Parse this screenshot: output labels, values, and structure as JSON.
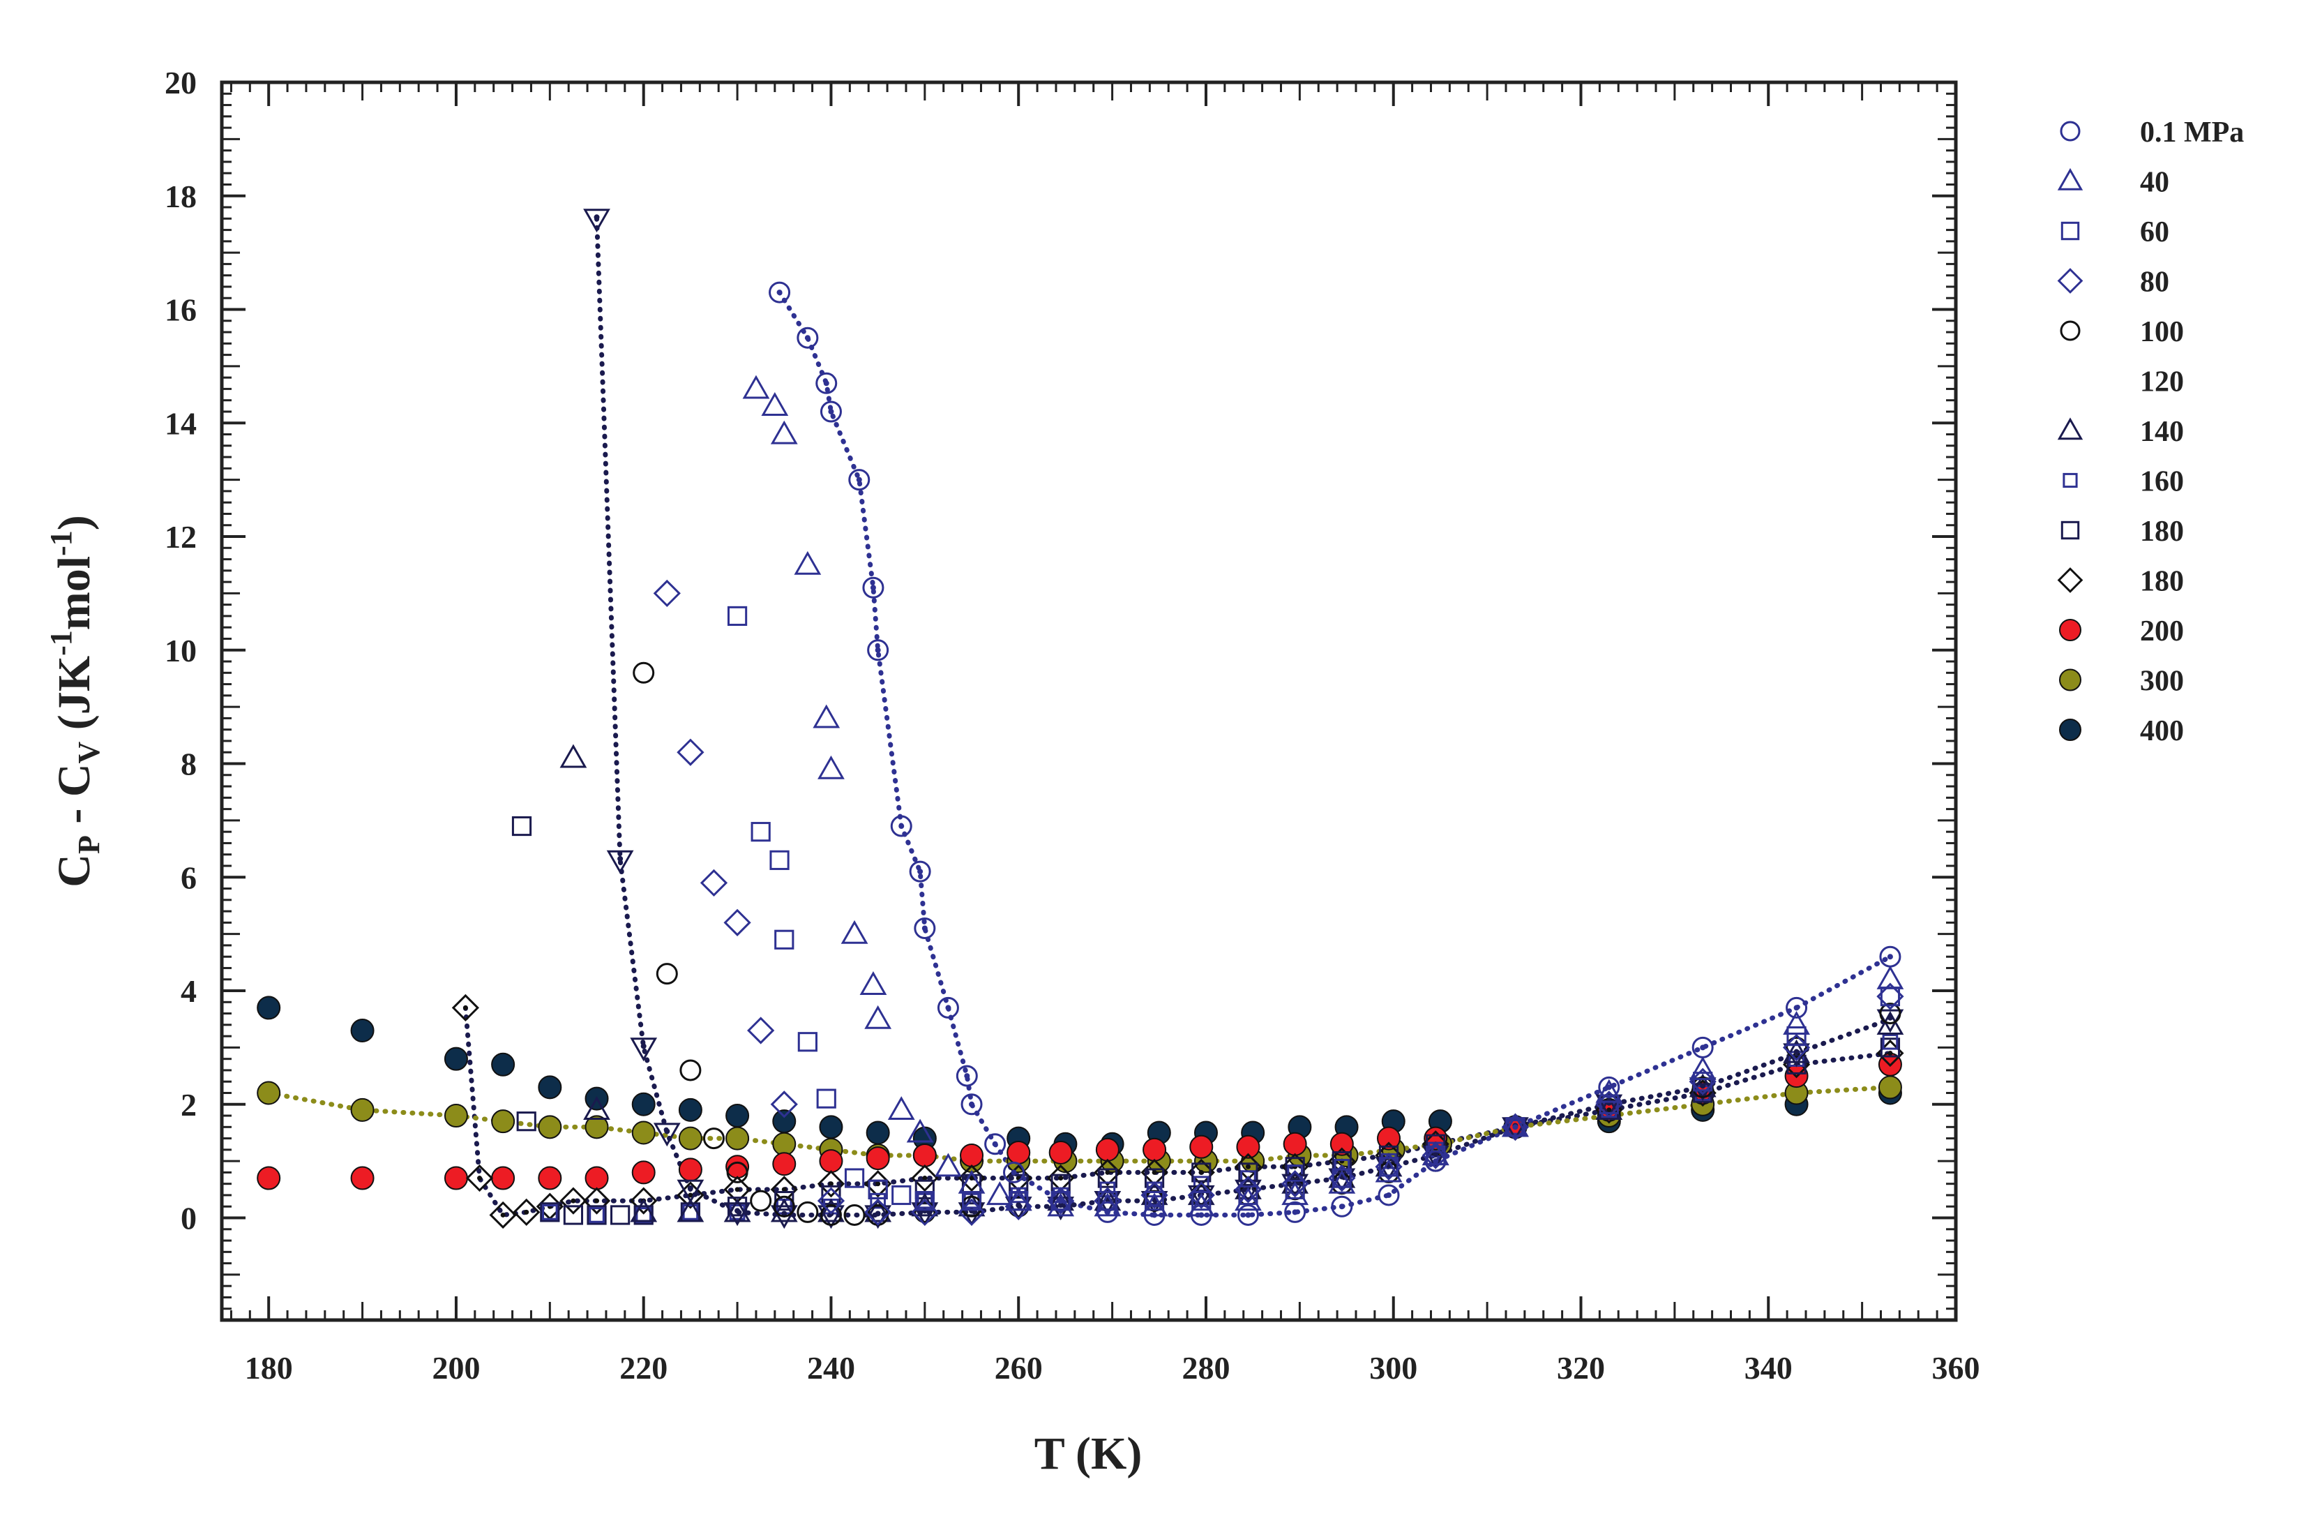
{
  "chart_data": {
    "type": "scatter",
    "title": "",
    "xlabel": "T (K)",
    "ylabel": {
      "main": "C",
      "sub1": "P",
      "mid": " - C",
      "sub2": "V",
      "units_open": " (JK",
      "sup1": "-1",
      "units_mol": "mol",
      "sup2": "-1",
      "units_close": ")"
    },
    "xlim": [
      175,
      360
    ],
    "ylim": [
      -1.8,
      20
    ],
    "xticks": [
      180,
      200,
      220,
      240,
      260,
      280,
      300,
      320,
      340,
      360
    ],
    "yticks": [
      0,
      2,
      4,
      6,
      8,
      10,
      12,
      14,
      16,
      18,
      20
    ],
    "grid": false,
    "legend_position": "right",
    "colors": {
      "blue": "#2e3192",
      "navy": "#1a1a4e",
      "red": "#ed1c24",
      "olive": "#8c8c1a",
      "darkteal": "#0d2d4a",
      "black": "#111111"
    },
    "series": [
      {
        "name": "0.1 MPa",
        "marker": "circle-dot",
        "color": "#2e3192",
        "x": [
          234.5,
          237.5,
          239.5,
          240,
          243,
          244.5,
          245,
          247.5,
          249.5,
          250,
          252.5,
          254.5,
          255,
          257.5,
          259.5,
          264.5,
          269.5,
          274.5,
          279.5,
          284.5,
          289.5,
          294.5,
          299.5,
          304.5,
          313,
          323,
          333,
          343,
          353
        ],
        "y": [
          16.3,
          15.5,
          14.7,
          14.2,
          13.0,
          11.1,
          10.0,
          6.9,
          6.1,
          5.1,
          3.7,
          2.5,
          2.0,
          1.3,
          0.8,
          0.3,
          0.1,
          0.05,
          0.05,
          0.05,
          0.1,
          0.2,
          0.4,
          1.0,
          1.6,
          2.3,
          3.0,
          3.7,
          4.6
        ],
        "line": true,
        "line_color": "#2e3192"
      },
      {
        "name": "40",
        "marker": "triangle-up",
        "color": "#2e3192",
        "x": [
          232,
          234,
          235,
          237.5,
          239.5,
          240,
          242.5,
          244.5,
          245,
          247.5,
          249.5,
          252.5,
          255,
          258,
          260,
          264.5,
          269.5,
          274.5,
          279.5,
          284.5,
          289.5,
          294.5,
          299.5,
          304.5,
          313,
          323,
          333,
          343,
          353
        ],
        "y": [
          14.6,
          14.3,
          13.8,
          11.5,
          8.8,
          7.9,
          5.0,
          4.1,
          3.5,
          1.9,
          1.5,
          0.9,
          0.6,
          0.4,
          0.3,
          0.2,
          0.2,
          0.2,
          0.2,
          0.3,
          0.4,
          0.6,
          0.8,
          1.1,
          1.6,
          2.2,
          2.6,
          3.4,
          4.2
        ],
        "line": false
      },
      {
        "name": "60",
        "marker": "square",
        "color": "#2e3192",
        "x": [
          230,
          232.5,
          234.5,
          235,
          237.5,
          239.5,
          242.5,
          245,
          247.5,
          250,
          255,
          260,
          264.5,
          269.5,
          274.5,
          279.5,
          284.5,
          289.5,
          294.5,
          299.5,
          304.5,
          313,
          323,
          333,
          343,
          353
        ],
        "y": [
          10.6,
          6.8,
          6.3,
          4.9,
          3.1,
          2.1,
          0.7,
          0.5,
          0.4,
          0.3,
          0.3,
          0.3,
          0.3,
          0.3,
          0.3,
          0.3,
          0.4,
          0.5,
          0.7,
          0.9,
          1.1,
          1.6,
          2.0,
          2.4,
          3.2,
          3.9
        ],
        "line": false
      },
      {
        "name": "80",
        "marker": "diamond",
        "color": "#2e3192",
        "x": [
          222.5,
          225,
          227.5,
          230,
          232.5,
          235,
          240,
          245,
          250,
          255,
          260,
          264.5,
          269.5,
          274.5,
          279.5,
          284.5,
          289.5,
          294.5,
          299.5,
          304.5,
          313,
          323,
          333,
          343,
          353
        ],
        "y": [
          11.0,
          8.2,
          5.9,
          5.2,
          3.3,
          2.0,
          0.3,
          0.1,
          0.1,
          0.1,
          0.2,
          0.3,
          0.3,
          0.4,
          0.4,
          0.5,
          0.6,
          0.7,
          0.9,
          1.1,
          1.6,
          2.0,
          2.4,
          3.0,
          3.9
        ],
        "line": false
      },
      {
        "name": "100",
        "marker": "circle",
        "color": "#111111",
        "x": [
          220,
          222.5,
          225,
          227.5,
          230,
          232.5,
          235,
          237.5,
          240,
          242.5,
          245,
          250,
          255,
          260,
          264.5,
          269.5,
          274.5,
          279.5,
          284.5,
          289.5,
          294.5,
          299.5,
          304.5,
          313,
          323,
          333,
          343,
          353
        ],
        "y": [
          9.6,
          4.3,
          2.6,
          1.4,
          0.8,
          0.3,
          0.2,
          0.1,
          0.05,
          0.05,
          0.05,
          0.1,
          0.2,
          0.2,
          0.3,
          0.3,
          0.3,
          0.4,
          0.4,
          0.5,
          0.6,
          0.8,
          1.0,
          1.6,
          2.0,
          2.3,
          3.0,
          3.6
        ],
        "line": false
      },
      {
        "name": "120",
        "marker": "triangle-down-dot",
        "color": "#1a1a4e",
        "x": [
          215,
          217.5,
          220,
          222.5,
          225,
          230,
          235,
          240,
          245,
          250,
          255,
          260,
          264.5,
          269.5,
          274.5,
          279.5,
          284.5,
          289.5,
          294.5,
          299.5,
          304.5,
          313,
          323,
          333,
          343,
          353
        ],
        "y": [
          17.6,
          6.3,
          3.0,
          1.5,
          0.5,
          0.1,
          0.05,
          0.05,
          0.05,
          0.1,
          0.1,
          0.2,
          0.2,
          0.3,
          0.3,
          0.4,
          0.5,
          0.6,
          0.7,
          0.9,
          1.1,
          1.6,
          2.0,
          2.3,
          2.9,
          3.5
        ],
        "line": true,
        "line_color": "#1a1a4e"
      },
      {
        "name": "140",
        "marker": "triangle-up",
        "color": "#1a1a4e",
        "x": [
          212.5,
          215,
          220,
          225,
          230,
          235,
          240,
          245,
          250,
          255,
          260,
          264.5,
          269.5,
          274.5,
          279.5,
          284.5,
          289.5,
          294.5,
          299.5,
          304.5,
          313,
          323,
          333,
          343,
          353
        ],
        "y": [
          8.1,
          1.9,
          0.1,
          0.1,
          0.1,
          0.1,
          0.1,
          0.1,
          0.2,
          0.2,
          0.3,
          0.3,
          0.3,
          0.4,
          0.4,
          0.5,
          0.6,
          0.7,
          0.9,
          1.1,
          1.6,
          1.9,
          2.3,
          2.9,
          3.4
        ],
        "line": false
      },
      {
        "name": "160",
        "marker": "square-small",
        "color": "#2e3192",
        "x": [
          210,
          215,
          220,
          225,
          230,
          235,
          240,
          245,
          250,
          255,
          260,
          264.5,
          269.5,
          274.5,
          279.5,
          284.5,
          289.5,
          294.5,
          299.5,
          304.5,
          313,
          323,
          333,
          343,
          353
        ],
        "y": [
          0.1,
          0.05,
          0.05,
          0.1,
          0.1,
          0.2,
          0.2,
          0.3,
          0.3,
          0.3,
          0.4,
          0.4,
          0.5,
          0.5,
          0.6,
          0.7,
          0.8,
          0.9,
          1.0,
          1.2,
          1.6,
          1.9,
          2.2,
          2.8,
          3.1
        ],
        "line": false
      },
      {
        "name": "180",
        "marker": "square",
        "color": "#1a1a4e",
        "x": [
          207,
          207.5,
          210,
          212.5,
          215,
          217.5,
          220,
          225,
          230,
          235,
          240,
          245,
          250,
          255,
          260,
          264.5,
          269.5,
          274.5,
          279.5,
          284.5,
          289.5,
          294.5,
          299.5,
          304.5,
          313,
          323,
          333,
          343,
          353
        ],
        "y": [
          6.9,
          1.7,
          0.1,
          0.05,
          0.05,
          0.05,
          0.05,
          0.1,
          0.2,
          0.3,
          0.4,
          0.5,
          0.5,
          0.6,
          0.6,
          0.6,
          0.7,
          0.7,
          0.8,
          0.8,
          0.9,
          1.0,
          1.1,
          1.3,
          1.6,
          1.9,
          2.2,
          2.7,
          3.0
        ],
        "line": false
      },
      {
        "name": "180",
        "marker": "diamond-dot",
        "color": "#111111",
        "x": [
          201,
          202.5,
          205,
          207.5,
          210,
          212.5,
          215,
          220,
          225,
          230,
          235,
          240,
          245,
          250,
          255,
          260,
          264.5,
          269.5,
          274.5,
          279.5,
          284.5,
          289.5,
          294.5,
          299.5,
          304.5,
          313,
          323,
          333,
          343,
          353
        ],
        "y": [
          3.7,
          0.7,
          0.05,
          0.1,
          0.2,
          0.3,
          0.3,
          0.3,
          0.4,
          0.5,
          0.5,
          0.6,
          0.6,
          0.7,
          0.7,
          0.7,
          0.7,
          0.8,
          0.8,
          0.8,
          0.9,
          0.9,
          1.0,
          1.1,
          1.3,
          1.6,
          1.9,
          2.2,
          2.7,
          2.9
        ],
        "line": true,
        "line_color": "#1a1a4e"
      },
      {
        "name": "200",
        "marker": "filled-circle",
        "color": "#ed1c24",
        "x": [
          180,
          190,
          200,
          205,
          210,
          215,
          220,
          225,
          230,
          235,
          240,
          245,
          250,
          255,
          260,
          264.5,
          269.5,
          274.5,
          279.5,
          284.5,
          289.5,
          294.5,
          299.5,
          304.5,
          313,
          323,
          333,
          343,
          353
        ],
        "y": [
          0.7,
          0.7,
          0.7,
          0.7,
          0.7,
          0.7,
          0.8,
          0.85,
          0.9,
          0.95,
          1.0,
          1.05,
          1.1,
          1.1,
          1.15,
          1.15,
          1.2,
          1.2,
          1.25,
          1.25,
          1.3,
          1.3,
          1.4,
          1.4,
          1.6,
          1.9,
          2.2,
          2.5,
          2.7
        ],
        "line": false
      },
      {
        "name": "300",
        "marker": "filled-circle",
        "color": "#8c8c1a",
        "x": [
          180,
          190,
          200,
          205,
          210,
          215,
          220,
          225,
          230,
          235,
          240,
          245,
          250,
          255,
          260,
          265,
          270,
          275,
          280,
          285,
          290,
          295,
          300,
          305,
          313,
          323,
          333,
          343,
          353
        ],
        "y": [
          2.2,
          1.9,
          1.8,
          1.7,
          1.6,
          1.6,
          1.5,
          1.4,
          1.4,
          1.3,
          1.2,
          1.1,
          1.1,
          1.0,
          1.0,
          1.0,
          1.0,
          1.0,
          1.0,
          1.0,
          1.1,
          1.1,
          1.2,
          1.3,
          1.6,
          1.8,
          2.0,
          2.2,
          2.3
        ],
        "line": true,
        "line_color": "#8c8c1a"
      },
      {
        "name": "400",
        "marker": "filled-circle",
        "color": "#0d2d4a",
        "x": [
          180,
          190,
          200,
          205,
          210,
          215,
          220,
          225,
          230,
          235,
          240,
          245,
          250,
          260,
          265,
          270,
          275,
          280,
          285,
          290,
          295,
          300,
          305,
          313,
          323,
          333,
          343,
          353
        ],
        "y": [
          3.7,
          3.3,
          2.8,
          2.7,
          2.3,
          2.1,
          2.0,
          1.9,
          1.8,
          1.7,
          1.6,
          1.5,
          1.4,
          1.4,
          1.3,
          1.3,
          1.5,
          1.5,
          1.5,
          1.6,
          1.6,
          1.7,
          1.7,
          1.6,
          1.7,
          1.9,
          2.0,
          2.2
        ],
        "line": false
      }
    ]
  }
}
